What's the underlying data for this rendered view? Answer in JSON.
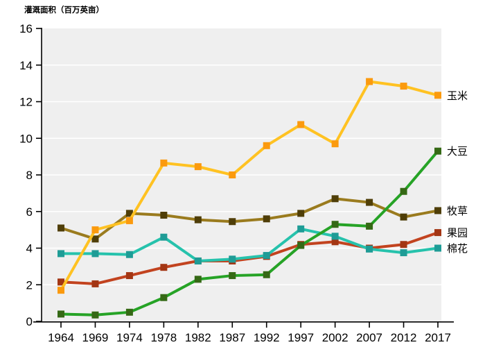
{
  "title": "灌溉面积（百万英亩）",
  "colors": {
    "panel_bg": "#efefef",
    "grid": "#ffffff",
    "axis": "#000000",
    "corn_line": "#ffc222",
    "corn_marker": "#fb9a0e",
    "soybean_line": "#26a326",
    "soybean_marker": "#356915",
    "pasture_line": "#9a7b1e",
    "pasture_marker": "#4f3e08",
    "orchard_line": "#c2431f",
    "orchard_marker": "#a33614",
    "cotton_line": "#26c2ac",
    "cotton_marker": "#1e9c96"
  },
  "chart_data": {
    "type": "line",
    "title": "灌溉面积（百万英亩）",
    "xlabel": "",
    "ylabel": "灌溉面积（百万英亩）",
    "categories": [
      "1964",
      "1969",
      "1974",
      "1978",
      "1982",
      "1987",
      "1992",
      "1997",
      "2002",
      "2007",
      "2012",
      "2017"
    ],
    "ylim": [
      0,
      16
    ],
    "yticks": [
      0,
      2,
      4,
      6,
      8,
      10,
      12,
      14,
      16
    ],
    "grid": "horizontal white gridlines on light gray panel",
    "legend_position": "direct labels at right end of each line",
    "series": [
      {
        "name": "玉米",
        "line_color": "#ffc222",
        "marker_color": "#fb9a0e",
        "values": [
          1.7,
          5.0,
          5.5,
          8.65,
          8.45,
          8.0,
          9.6,
          10.75,
          9.7,
          13.1,
          12.85,
          12.35
        ]
      },
      {
        "name": "大豆",
        "line_color": "#26a326",
        "marker_color": "#356915",
        "values": [
          0.4,
          0.35,
          0.5,
          1.3,
          2.3,
          2.5,
          2.55,
          4.15,
          5.3,
          5.2,
          7.1,
          9.3
        ]
      },
      {
        "name": "牧草",
        "line_color": "#9a7b1e",
        "marker_color": "#4f3e08",
        "values": [
          5.1,
          4.5,
          5.9,
          5.8,
          5.55,
          5.45,
          5.6,
          5.9,
          6.7,
          6.5,
          5.7,
          6.05
        ]
      },
      {
        "name": "果园",
        "line_color": "#c2431f",
        "marker_color": "#a33614",
        "values": [
          2.15,
          2.05,
          2.5,
          2.95,
          3.3,
          3.3,
          3.55,
          4.2,
          4.35,
          4.0,
          4.2,
          4.85
        ]
      },
      {
        "name": "棉花",
        "line_color": "#26c2ac",
        "marker_color": "#1e9c96",
        "values": [
          3.7,
          3.7,
          3.65,
          4.6,
          3.3,
          3.4,
          3.6,
          5.05,
          4.65,
          3.95,
          3.75,
          4.0
        ]
      }
    ]
  }
}
